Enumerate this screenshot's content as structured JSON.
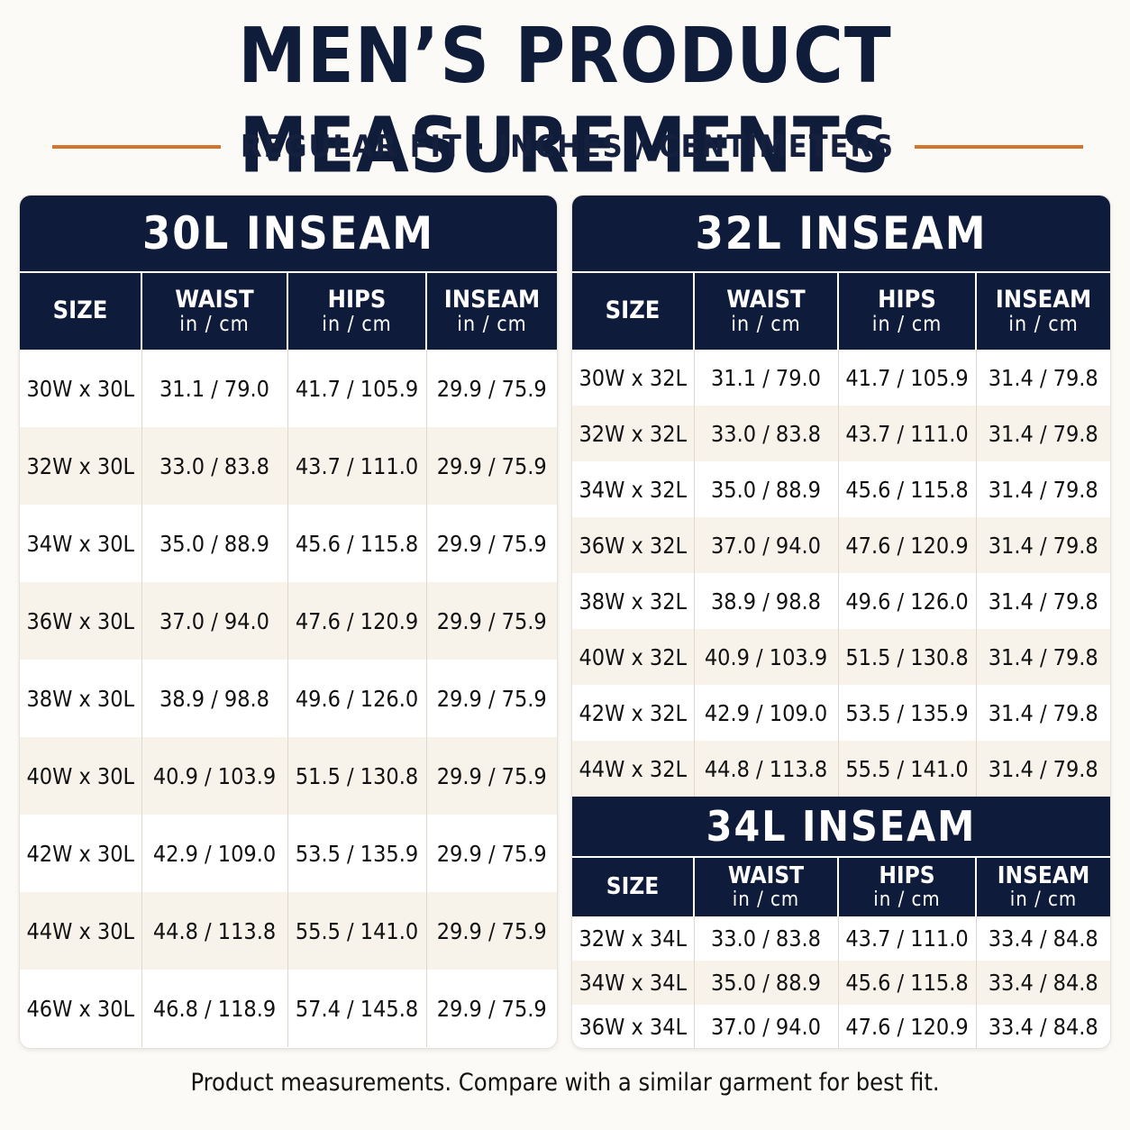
{
  "title": "MEN’S PRODUCT MEASUREMENTS",
  "subtitle": "REGULAR FIT · INCHES / CENTIMETERS",
  "headers": {
    "size": "SIZE",
    "waist": "WAIST",
    "hips": "HIPS",
    "inseam": "INSEAM",
    "unit": "in / cm"
  },
  "tables": {
    "t30": {
      "title": "30L INSEAM",
      "rows": [
        [
          "30W x 30L",
          "31.1 / 79.0",
          "41.7 / 105.9",
          "29.9 / 75.9"
        ],
        [
          "32W x 30L",
          "33.0 / 83.8",
          "43.7 / 111.0",
          "29.9 / 75.9"
        ],
        [
          "34W x 30L",
          "35.0 / 88.9",
          "45.6 / 115.8",
          "29.9 / 75.9"
        ],
        [
          "36W x 30L",
          "37.0 / 94.0",
          "47.6 / 120.9",
          "29.9 / 75.9"
        ],
        [
          "38W x 30L",
          "38.9 / 98.8",
          "49.6 / 126.0",
          "29.9 / 75.9"
        ],
        [
          "40W x 30L",
          "40.9 / 103.9",
          "51.5 / 130.8",
          "29.9 / 75.9"
        ],
        [
          "42W x 30L",
          "42.9 / 109.0",
          "53.5 / 135.9",
          "29.9 / 75.9"
        ],
        [
          "44W x 30L",
          "44.8 / 113.8",
          "55.5 / 141.0",
          "29.9 / 75.9"
        ],
        [
          "46W x 30L",
          "46.8 / 118.9",
          "57.4 / 145.8",
          "29.9 / 75.9"
        ]
      ]
    },
    "t32": {
      "title": "32L INSEAM",
      "rows": [
        [
          "30W x 32L",
          "31.1 / 79.0",
          "41.7 / 105.9",
          "31.4 / 79.8"
        ],
        [
          "32W x 32L",
          "33.0 / 83.8",
          "43.7 / 111.0",
          "31.4 / 79.8"
        ],
        [
          "34W x 32L",
          "35.0 / 88.9",
          "45.6 / 115.8",
          "31.4 / 79.8"
        ],
        [
          "36W x 32L",
          "37.0 / 94.0",
          "47.6 / 120.9",
          "31.4 / 79.8"
        ],
        [
          "38W x 32L",
          "38.9 / 98.8",
          "49.6 / 126.0",
          "31.4 / 79.8"
        ],
        [
          "40W x 32L",
          "40.9 / 103.9",
          "51.5 / 130.8",
          "31.4 / 79.8"
        ],
        [
          "42W x 32L",
          "42.9 / 109.0",
          "53.5 / 135.9",
          "31.4 / 79.8"
        ],
        [
          "44W x 32L",
          "44.8 / 113.8",
          "55.5 / 141.0",
          "31.4 / 79.8"
        ]
      ]
    },
    "t34": {
      "title": "34L INSEAM",
      "rows": [
        [
          "32W x 34L",
          "33.0 / 83.8",
          "43.7 / 111.0",
          "33.4 / 84.8"
        ],
        [
          "34W x 34L",
          "35.0 / 88.9",
          "45.6 / 115.8",
          "33.4 / 84.8"
        ],
        [
          "36W x 34L",
          "37.0 / 94.0",
          "47.6 / 120.9",
          "33.4 / 84.8"
        ]
      ]
    }
  },
  "footer": "Product measurements. Compare with a similar garment for best fit."
}
